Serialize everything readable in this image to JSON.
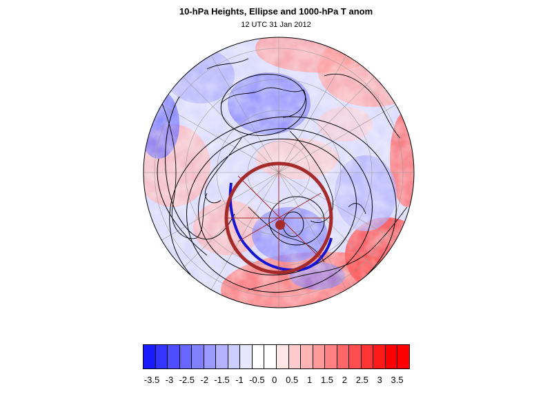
{
  "figure": {
    "title": "10-hPa Heights, Ellipse and 1000-hPa T anom",
    "subtitle": "12 UTC 31 Jan 2012"
  },
  "map": {
    "projection": "north polar stereographic",
    "fill_field": "1000-hPa temperature anomaly",
    "contour_field": "10-hPa geopotential height",
    "overlay": "polar vortex ellipse with centroid and axes",
    "colors": {
      "ellipse_edge": "#a52a2a",
      "ellipse_inner_edge": "#1414d2",
      "contours": "#000000",
      "coastlines": "#000000",
      "graticule": "#aaaaaa"
    }
  },
  "colorbar": {
    "labels": [
      "-3.5",
      "-3",
      "-2.5",
      "-2",
      "-1.5",
      "-1",
      "-0.5",
      "0",
      "0.5",
      "1",
      "1.5",
      "2",
      "2.5",
      "3",
      "3.5"
    ],
    "colors": [
      "#1a1aff",
      "#3434ff",
      "#4e4eff",
      "#6767ff",
      "#8181ff",
      "#9a9aff",
      "#b3b3ff",
      "#cccdff",
      "#e6e6ff",
      "#ffffff",
      "#ffffff",
      "#ffe6e6",
      "#ffcccd",
      "#ffb3b3",
      "#ff9a9a",
      "#ff8181",
      "#ff6767",
      "#ff4e4e",
      "#ff3434",
      "#ff1a1a",
      "#ff0000",
      "#ff0000"
    ]
  }
}
